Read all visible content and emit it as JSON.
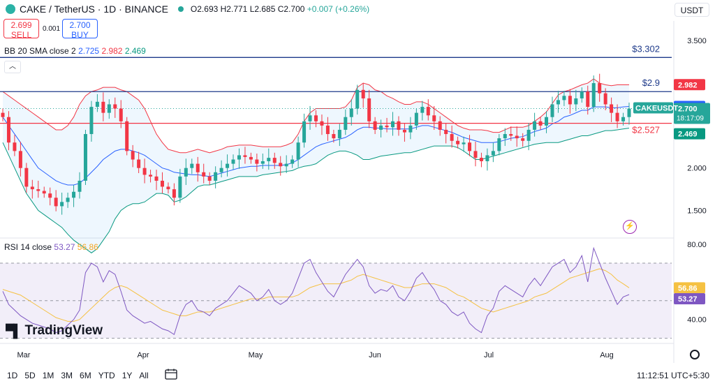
{
  "header": {
    "symbol": "CAKE / TetherUS · 1D · BINANCE",
    "open": "O2.693",
    "high": "H2.771",
    "low": "L2.685",
    "close": "C2.700",
    "change": "+0.007 (+0.26%)"
  },
  "trade": {
    "sell_price": "2.699",
    "sell_label": "SELL",
    "spread": "0.001",
    "buy_price": "2.700",
    "buy_label": "BUY"
  },
  "currency": "USDT",
  "indicators": {
    "bb_label": "BB 20 SMA close 2",
    "bb_basis": "2.725",
    "bb_upper": "2.982",
    "bb_lower": "2.469",
    "rsi_label": "RSI 14 close",
    "rsi_value": "53.27",
    "rsi_ma": "56.86"
  },
  "watermark": "TradingView",
  "timeframes": [
    "1D",
    "5D",
    "1M",
    "3M",
    "6M",
    "YTD",
    "1Y",
    "All"
  ],
  "clock": "11:12:51 UTC+5:30",
  "colors": {
    "up": "#26a69a",
    "down": "#f23645",
    "bb_upper": "#f23645",
    "bb_basis": "#2962ff",
    "bb_lower": "#089981",
    "rsi": "#7e57c2",
    "rsi_ma": "#f5c142",
    "hline": "#1e3a8a"
  },
  "chart_data": [
    {
      "type": "candlestick",
      "xlabel_ticks": [
        "Mar",
        "Apr",
        "May",
        "Jun",
        "Jul",
        "Aug"
      ],
      "y_ticks": [
        "3.500",
        "2.000",
        "1.500"
      ],
      "ylim": [
        1.2,
        3.65
      ],
      "hlines": [
        {
          "value": 3.302,
          "label": "$3.302"
        },
        {
          "value": 2.9,
          "label": "$2.9"
        },
        {
          "value": 2.527,
          "label": "$2.527"
        }
      ],
      "price_labels": {
        "upper": "2.982",
        "basis": "2.725",
        "symbol": "CAKEUSDT",
        "last": "2.700",
        "countdown": "18:17:09",
        "lower": "2.469"
      },
      "close": [
        2.6,
        2.3,
        2.2,
        2.0,
        1.78,
        1.75,
        1.73,
        1.7,
        1.65,
        1.55,
        1.6,
        1.65,
        1.72,
        1.85,
        2.4,
        2.72,
        2.78,
        2.65,
        2.75,
        2.7,
        2.55,
        2.2,
        2.1,
        2.0,
        1.92,
        1.9,
        1.85,
        1.78,
        1.75,
        1.65,
        1.9,
        2.0,
        2.05,
        1.95,
        1.9,
        1.85,
        1.95,
        2.0,
        2.05,
        2.1,
        2.15,
        2.13,
        2.1,
        2.05,
        2.08,
        2.12,
        2.06,
        2.02,
        2.05,
        2.1,
        2.3,
        2.55,
        2.62,
        2.55,
        2.5,
        2.4,
        2.35,
        2.45,
        2.6,
        2.7,
        2.92,
        2.82,
        2.55,
        2.45,
        2.5,
        2.48,
        2.55,
        2.45,
        2.42,
        2.5,
        2.65,
        2.72,
        2.62,
        2.55,
        2.45,
        2.4,
        2.32,
        2.28,
        2.3,
        2.2,
        2.12,
        2.08,
        2.15,
        2.2,
        2.35,
        2.4,
        2.38,
        2.35,
        2.32,
        2.45,
        2.55,
        2.5,
        2.6,
        2.75,
        2.8,
        2.85,
        2.75,
        2.82,
        2.9,
        2.72,
        3.0,
        2.88,
        2.75,
        2.65,
        2.55,
        2.6,
        2.7
      ],
      "bb_upper": [
        2.9,
        2.85,
        2.8,
        2.75,
        2.7,
        2.65,
        2.6,
        2.55,
        2.5,
        2.45,
        2.45,
        2.5,
        2.6,
        2.75,
        2.85,
        2.9,
        2.92,
        2.95,
        2.95,
        2.95,
        2.92,
        2.9,
        2.85,
        2.8,
        2.7,
        2.55,
        2.4,
        2.3,
        2.22,
        2.2,
        2.18,
        2.18,
        2.2,
        2.22,
        2.2,
        2.18,
        2.2,
        2.22,
        2.25,
        2.26,
        2.27,
        2.27,
        2.27,
        2.26,
        2.25,
        2.25,
        2.25,
        2.25,
        2.27,
        2.3,
        2.4,
        2.55,
        2.65,
        2.7,
        2.7,
        2.7,
        2.7,
        2.7,
        2.72,
        2.8,
        2.95,
        3.0,
        2.98,
        2.92,
        2.9,
        2.85,
        2.82,
        2.78,
        2.75,
        2.75,
        2.78,
        2.78,
        2.75,
        2.7,
        2.65,
        2.6,
        2.55,
        2.5,
        2.47,
        2.45,
        2.45,
        2.45,
        2.44,
        2.42,
        2.42,
        2.45,
        2.48,
        2.48,
        2.48,
        2.5,
        2.55,
        2.6,
        2.66,
        2.76,
        2.86,
        2.9,
        2.92,
        2.95,
        2.98,
        3.0,
        3.05,
        3.0,
        2.98,
        2.97,
        2.98,
        2.98,
        2.98
      ],
      "bb_basis": [
        2.6,
        2.5,
        2.4,
        2.3,
        2.2,
        2.1,
        2.0,
        1.95,
        1.9,
        1.85,
        1.82,
        1.8,
        1.8,
        1.82,
        1.88,
        1.95,
        2.02,
        2.1,
        2.15,
        2.2,
        2.22,
        2.22,
        2.2,
        2.18,
        2.15,
        2.1,
        2.05,
        2.0,
        1.98,
        1.95,
        1.94,
        1.93,
        1.92,
        1.92,
        1.91,
        1.9,
        1.92,
        1.94,
        1.96,
        1.98,
        2.0,
        2.01,
        2.02,
        2.02,
        2.03,
        2.03,
        2.03,
        2.03,
        2.04,
        2.06,
        2.1,
        2.15,
        2.2,
        2.25,
        2.28,
        2.3,
        2.32,
        2.34,
        2.36,
        2.4,
        2.45,
        2.48,
        2.48,
        2.47,
        2.47,
        2.46,
        2.46,
        2.46,
        2.46,
        2.46,
        2.48,
        2.5,
        2.5,
        2.48,
        2.46,
        2.44,
        2.42,
        2.39,
        2.36,
        2.34,
        2.32,
        2.3,
        2.3,
        2.3,
        2.31,
        2.33,
        2.35,
        2.36,
        2.37,
        2.4,
        2.43,
        2.45,
        2.47,
        2.52,
        2.55,
        2.6,
        2.62,
        2.65,
        2.68,
        2.68,
        2.72,
        2.72,
        2.72,
        2.71,
        2.71,
        2.72,
        2.725
      ],
      "bb_lower": [
        2.3,
        2.15,
        2.0,
        1.85,
        1.7,
        1.6,
        1.5,
        1.45,
        1.4,
        1.35,
        1.3,
        1.22,
        1.15,
        1.1,
        1.05,
        1.0,
        1.05,
        1.15,
        1.25,
        1.4,
        1.5,
        1.55,
        1.58,
        1.58,
        1.6,
        1.65,
        1.7,
        1.7,
        1.68,
        1.6,
        1.62,
        1.66,
        1.72,
        1.78,
        1.8,
        1.8,
        1.82,
        1.84,
        1.86,
        1.88,
        1.9,
        1.9,
        1.9,
        1.9,
        1.92,
        1.93,
        1.94,
        1.95,
        1.96,
        1.97,
        2.0,
        2.02,
        2.03,
        2.05,
        2.1,
        2.15,
        2.18,
        2.2,
        2.2,
        2.18,
        2.15,
        2.1,
        2.1,
        2.12,
        2.14,
        2.15,
        2.16,
        2.17,
        2.18,
        2.18,
        2.2,
        2.22,
        2.24,
        2.26,
        2.26,
        2.26,
        2.26,
        2.24,
        2.2,
        2.15,
        2.1,
        2.1,
        2.12,
        2.14,
        2.16,
        2.18,
        2.2,
        2.22,
        2.24,
        2.26,
        2.28,
        2.29,
        2.3,
        2.3,
        2.3,
        2.32,
        2.34,
        2.36,
        2.38,
        2.38,
        2.4,
        2.42,
        2.44,
        2.44,
        2.45,
        2.46,
        2.469
      ]
    },
    {
      "type": "line",
      "title": "RSI 14 close",
      "y_ticks": [
        "80.00",
        "40.00"
      ],
      "ylim": [
        28,
        83
      ],
      "band": [
        70,
        30
      ],
      "series": [
        {
          "name": "RSI",
          "values": [
            55,
            48,
            45,
            42,
            40,
            38,
            37,
            36,
            35,
            33,
            34,
            37,
            40,
            45,
            65,
            70,
            68,
            60,
            66,
            64,
            55,
            45,
            42,
            40,
            38,
            39,
            37,
            35,
            34,
            32,
            42,
            48,
            50,
            45,
            44,
            42,
            46,
            48,
            50,
            54,
            58,
            56,
            54,
            50,
            52,
            56,
            50,
            48,
            50,
            54,
            62,
            70,
            72,
            65,
            60,
            55,
            52,
            58,
            64,
            68,
            72,
            68,
            58,
            54,
            56,
            55,
            58,
            52,
            50,
            55,
            62,
            65,
            60,
            56,
            50,
            48,
            44,
            42,
            44,
            38,
            35,
            33,
            42,
            46,
            55,
            58,
            56,
            54,
            52,
            58,
            62,
            58,
            63,
            68,
            70,
            72,
            65,
            68,
            74,
            60,
            78,
            70,
            62,
            55,
            48,
            52,
            53.27
          ]
        },
        {
          "name": "MA",
          "values": [
            56,
            55,
            54,
            53,
            51,
            49,
            47,
            45,
            43,
            41,
            40,
            39,
            39,
            40,
            43,
            46,
            49,
            52,
            55,
            57,
            58,
            57,
            55,
            53,
            51,
            49,
            47,
            45,
            44,
            43,
            42,
            42,
            43,
            44,
            44,
            44,
            45,
            46,
            47,
            48,
            49,
            50,
            51,
            51,
            51,
            52,
            52,
            52,
            52,
            52,
            53,
            55,
            57,
            58,
            59,
            59,
            59,
            59,
            60,
            61,
            63,
            64,
            63,
            62,
            61,
            60,
            59,
            58,
            57,
            57,
            58,
            59,
            59,
            59,
            58,
            57,
            55,
            53,
            52,
            50,
            48,
            46,
            45,
            44,
            45,
            46,
            47,
            48,
            49,
            50,
            52,
            53,
            54,
            56,
            58,
            60,
            62,
            63,
            64,
            65,
            66,
            67,
            66,
            64,
            61,
            59,
            56.86
          ]
        }
      ]
    }
  ]
}
